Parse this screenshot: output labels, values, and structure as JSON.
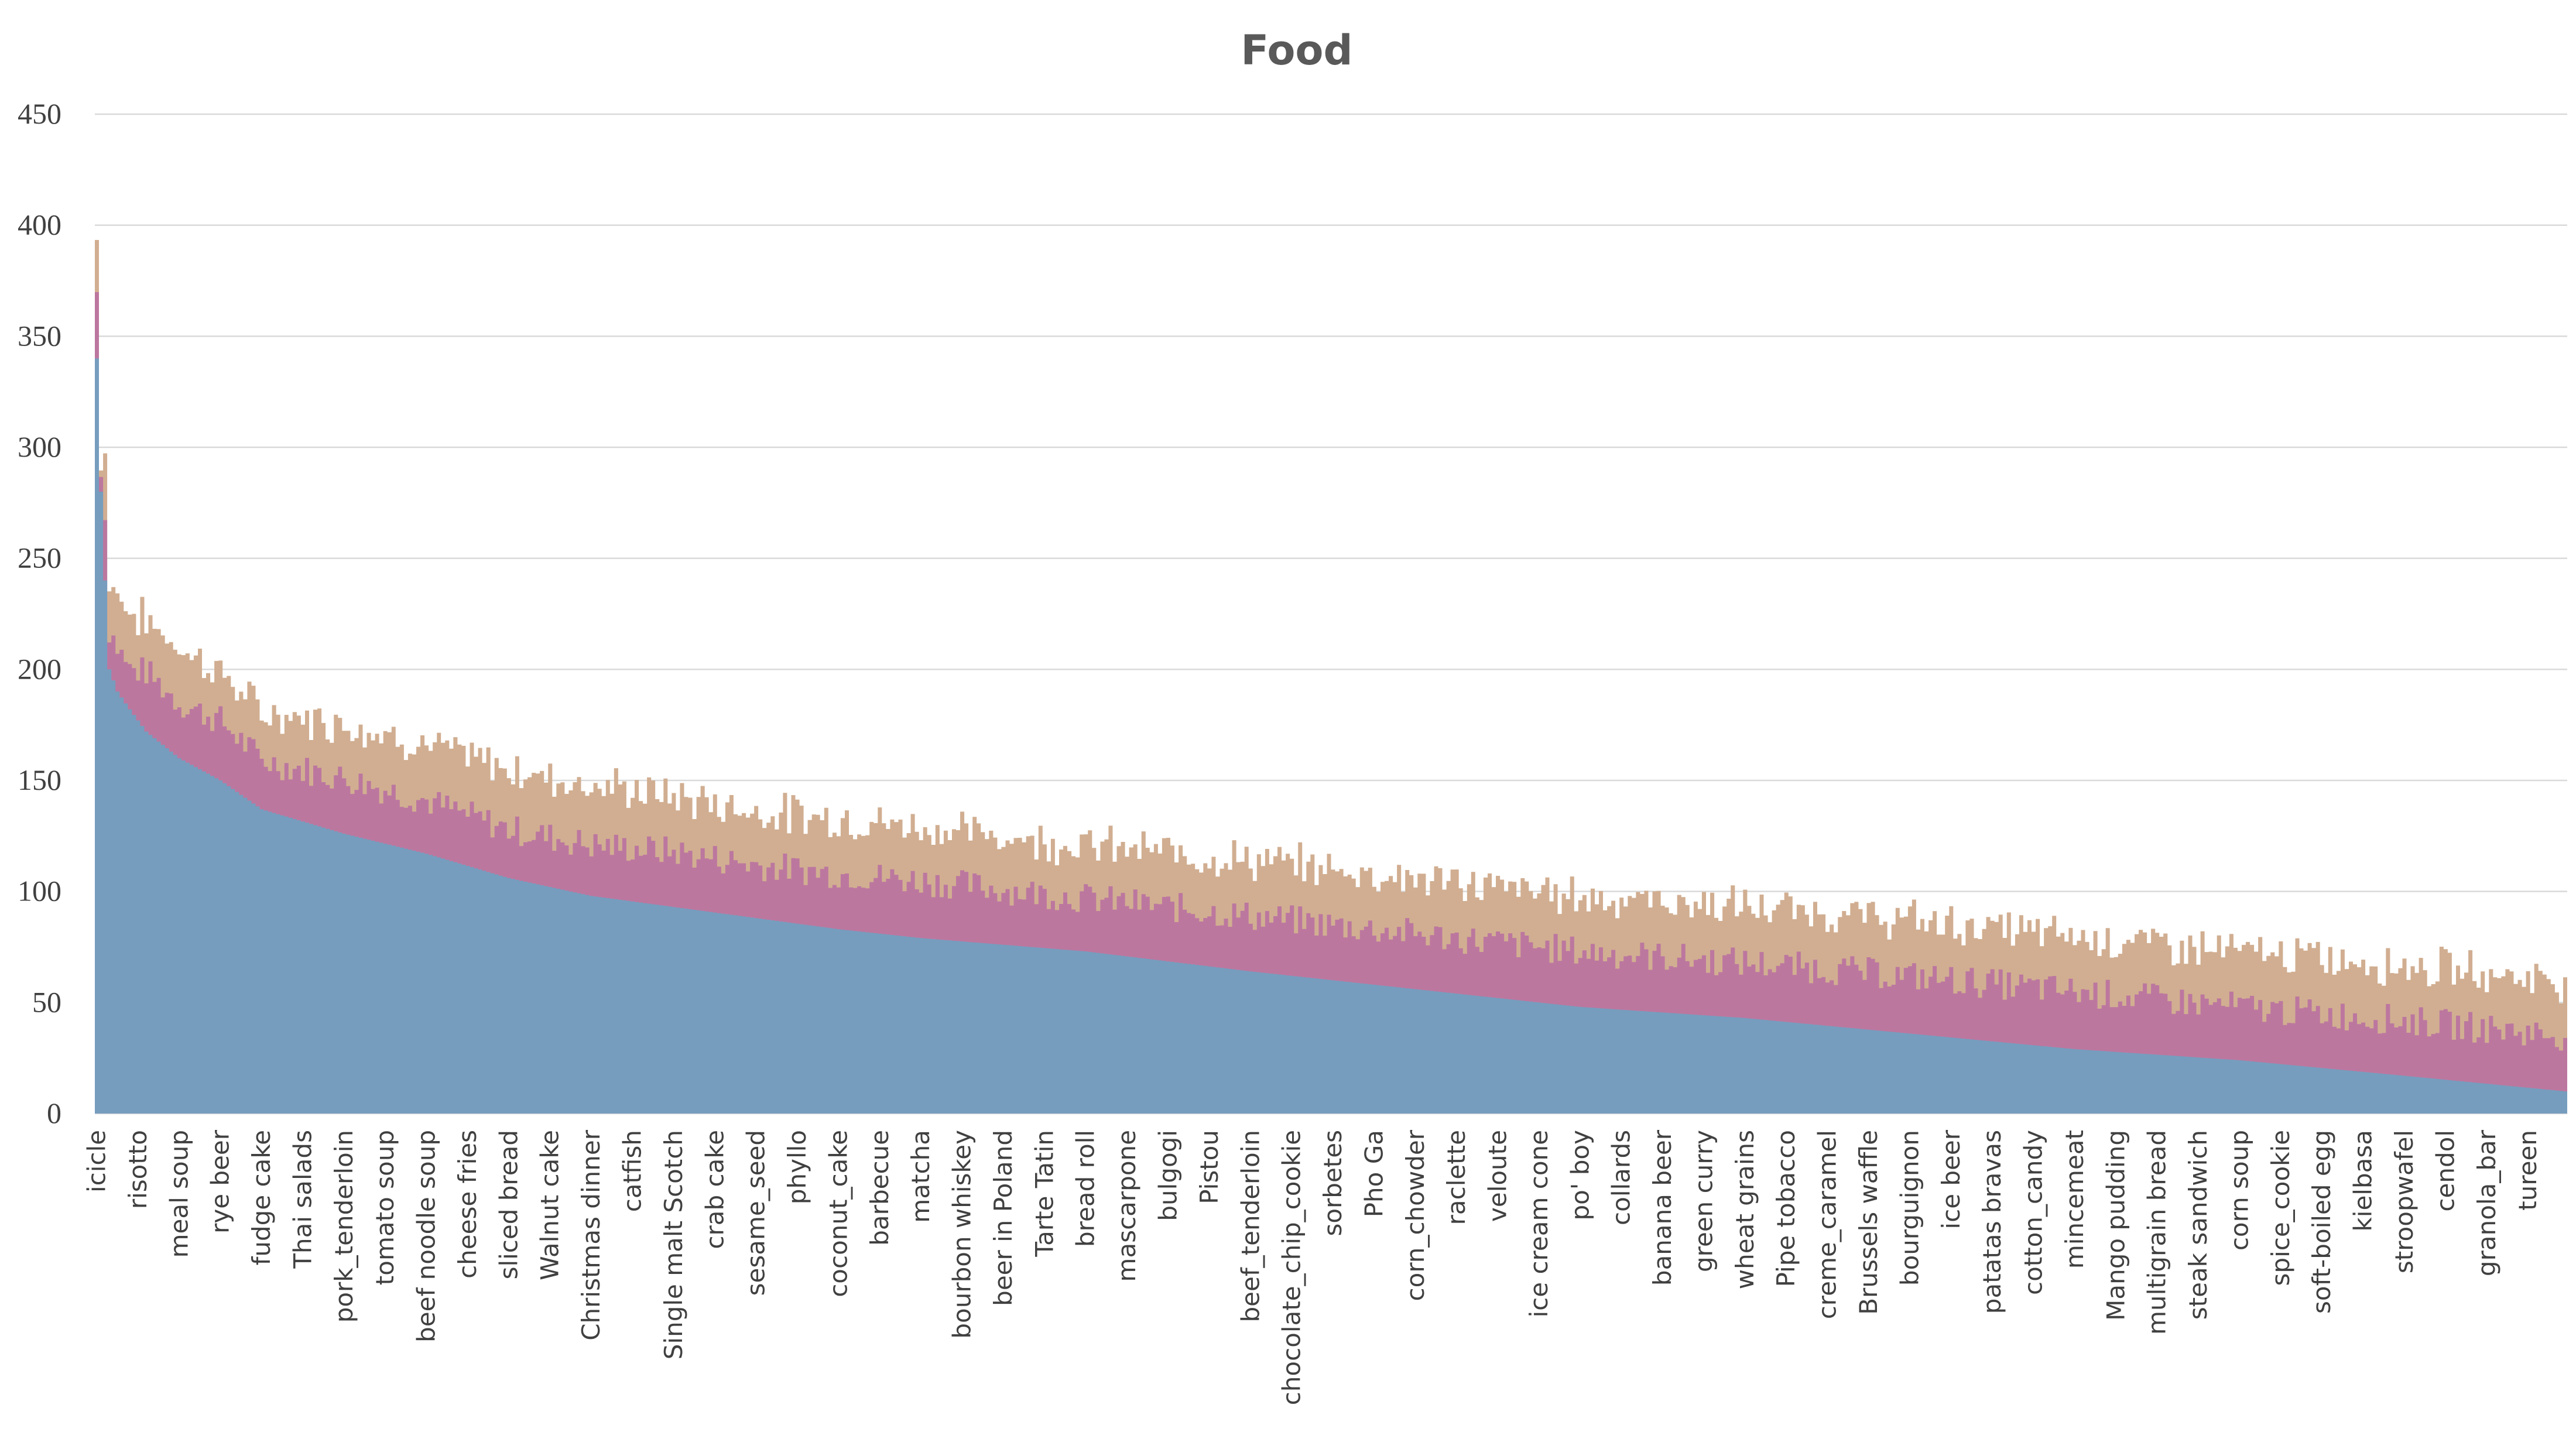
{
  "chart_data": {
    "type": "area",
    "stacked": true,
    "title": "Food",
    "xlabel": "",
    "ylabel": "",
    "ylim": [
      0,
      450
    ],
    "yticks": [
      0,
      50,
      100,
      150,
      200,
      250,
      300,
      350,
      400,
      450
    ],
    "grid": true,
    "legend": "none",
    "colors": [
      "#769dbe",
      "#bc779f",
      "#d1ae91"
    ],
    "point_count": 600,
    "tick_labels": [
      "icicle",
      "risotto",
      "meal soup",
      "rye beer",
      "fudge cake",
      "Thai salads",
      "pork_tenderloin",
      "tomato soup",
      "beef noodle soup",
      "cheese fries",
      "sliced bread",
      "Walnut cake",
      "Christmas dinner",
      "catfish",
      "Single malt Scotch",
      "crab cake",
      "sesame_seed",
      "phyllo",
      "coconut_cake",
      "barbecue",
      "matcha",
      "bourbon whiskey",
      "beer in Poland",
      "Tarte Tatin",
      "bread roll",
      "mascarpone",
      "bulgogi",
      "Pistou",
      "beef_tenderloin",
      "chocolate_chip_cookie",
      "sorbetes",
      "Pho Ga",
      "corn_chowder",
      "raclette",
      "veloute",
      "ice cream cone",
      "po' boy",
      "collards",
      "banana beer",
      "green curry",
      "wheat grains",
      "Pipe tobacco",
      "creme_caramel",
      "Brussels waffle",
      "bourguignon",
      "ice beer",
      "patatas bravas",
      "cotton_candy",
      "mincemeat",
      "Mango pudding",
      "multigrain bread",
      "steak sandwich",
      "corn soup",
      "spice_cookie",
      "soft-boiled egg",
      "kielbasa",
      "stroopwafel",
      "cendol",
      "granola_bar",
      "tureen"
    ],
    "tick_positions": [
      0,
      10,
      20,
      30,
      40,
      50,
      60,
      70,
      80,
      90,
      100,
      110,
      120,
      130,
      140,
      150,
      160,
      170,
      180,
      190,
      200,
      210,
      220,
      230,
      240,
      250,
      260,
      270,
      280,
      290,
      300,
      310,
      320,
      330,
      340,
      350,
      360,
      370,
      380,
      390,
      400,
      410,
      420,
      430,
      440,
      450,
      460,
      470,
      480,
      490,
      500,
      510,
      520,
      530,
      540,
      550,
      560,
      570,
      580,
      590
    ],
    "series_profile": {
      "x": [
        0,
        1,
        2,
        3,
        5,
        8,
        12,
        20,
        30,
        40,
        60,
        80,
        100,
        120,
        140,
        160,
        180,
        200,
        240,
        280,
        320,
        360,
        400,
        440,
        480,
        520,
        560,
        599
      ],
      "series_1": [
        340,
        280,
        240,
        200,
        190,
        182,
        172,
        160,
        150,
        137,
        126,
        117,
        106,
        98,
        93,
        88,
        83,
        79,
        73,
        64,
        56,
        48,
        43,
        36,
        29,
        24,
        17,
        10
      ],
      "series_2": [
        30,
        12,
        28,
        18,
        20,
        18,
        27,
        25,
        27,
        22,
        25,
        24,
        22,
        23,
        25,
        24,
        25,
        26,
        24,
        25,
        25,
        25,
        25,
        26,
        26,
        24,
        25,
        25
      ],
      "series_3": [
        23,
        5,
        30,
        20,
        25,
        25,
        23,
        25,
        22,
        21,
        25,
        25,
        27,
        27,
        25,
        24,
        25,
        24,
        24,
        25,
        25,
        25,
        25,
        25,
        25,
        25,
        25,
        25
      ]
    }
  }
}
